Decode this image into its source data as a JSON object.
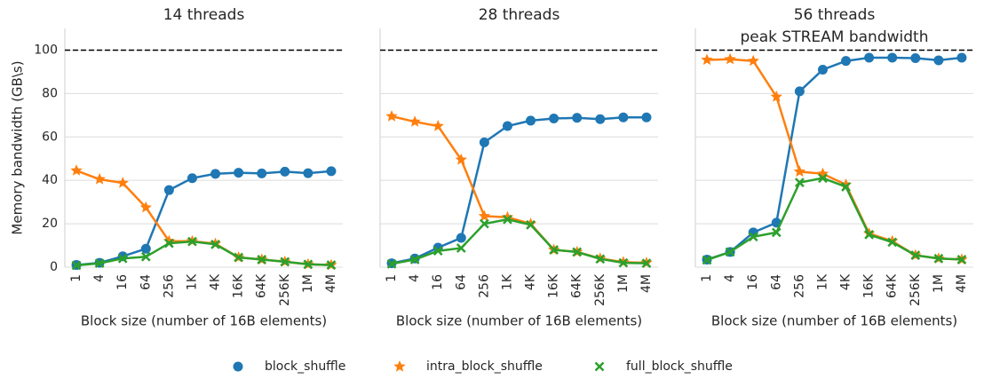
{
  "chart_data": [
    {
      "type": "line",
      "title": "14 threads",
      "ylabel": "Memory bandwidth (GB\\s)",
      "xlabel": "Block size (number of 16B elements)",
      "categories": [
        "1",
        "4",
        "16",
        "64",
        "256",
        "1K",
        "4K",
        "16K",
        "64K",
        "256K",
        "1M",
        "4M"
      ],
      "ylim": [
        0,
        110
      ],
      "yticks": [
        0,
        20,
        40,
        60,
        80,
        100
      ],
      "grid": true,
      "reference_line": 100,
      "series": [
        {
          "name": "block_shuffle",
          "color": "#1f77b4",
          "marker": "circle",
          "values": [
            1,
            2,
            5,
            8.5,
            35.5,
            41,
            43,
            43.5,
            43.2,
            44,
            43.3,
            44.2
          ]
        },
        {
          "name": "intra_block_shuffle",
          "color": "#ff7f0e",
          "marker": "star",
          "values": [
            44.5,
            40.5,
            38.8,
            27.5,
            12,
            12,
            10.8,
            4.5,
            3.5,
            2.5,
            1.3,
            1
          ]
        },
        {
          "name": "full_block_shuffle",
          "color": "#2ca02c",
          "marker": "x",
          "values": [
            0.8,
            1.8,
            4,
            4.8,
            11,
            11.8,
            10.5,
            4.5,
            3.5,
            2.5,
            1.3,
            1
          ]
        }
      ]
    },
    {
      "type": "line",
      "title": "28 threads",
      "xlabel": "Block size (number of 16B elements)",
      "categories": [
        "1",
        "4",
        "16",
        "64",
        "256",
        "1K",
        "4K",
        "16K",
        "64K",
        "256K",
        "1M",
        "4M"
      ],
      "ylim": [
        0,
        110
      ],
      "yticks": [
        0,
        20,
        40,
        60,
        80,
        100
      ],
      "grid": true,
      "reference_line": 100,
      "series": [
        {
          "name": "block_shuffle",
          "color": "#1f77b4",
          "marker": "circle",
          "values": [
            1.8,
            4,
            9,
            13.5,
            57.5,
            65,
            67.5,
            68.5,
            68.8,
            68.2,
            69,
            69
          ]
        },
        {
          "name": "intra_block_shuffle",
          "color": "#ff7f0e",
          "marker": "star",
          "values": [
            69.5,
            67,
            65,
            49.5,
            23.5,
            23,
            20,
            8,
            7,
            4,
            2.3,
            2
          ]
        },
        {
          "name": "full_block_shuffle",
          "color": "#2ca02c",
          "marker": "x",
          "values": [
            1.5,
            3.5,
            7.5,
            8.8,
            20,
            22,
            19.5,
            8,
            7,
            3.8,
            2,
            1.8
          ]
        }
      ]
    },
    {
      "type": "line",
      "title": "56 threads",
      "xlabel": "Block size (number of 16B elements)",
      "annotation": "peak STREAM bandwidth",
      "categories": [
        "1",
        "4",
        "16",
        "64",
        "256",
        "1K",
        "4K",
        "16K",
        "64K",
        "256K",
        "1M",
        "4M"
      ],
      "ylim": [
        0,
        110
      ],
      "yticks": [
        0,
        20,
        40,
        60,
        80,
        100
      ],
      "grid": true,
      "reference_line": 100,
      "series": [
        {
          "name": "block_shuffle",
          "color": "#1f77b4",
          "marker": "circle",
          "values": [
            3.5,
            7,
            16,
            20.5,
            81,
            91,
            95,
            96.5,
            96.5,
            96.3,
            95.3,
            96.5
          ]
        },
        {
          "name": "intra_block_shuffle",
          "color": "#ff7f0e",
          "marker": "star",
          "values": [
            95.5,
            95.8,
            95,
            78.5,
            44,
            43,
            38,
            15.5,
            12,
            5.5,
            4,
            3.5
          ]
        },
        {
          "name": "full_block_shuffle",
          "color": "#2ca02c",
          "marker": "x",
          "values": [
            3.3,
            7,
            14,
            16,
            39,
            41,
            37,
            15,
            11.5,
            5.5,
            4,
            3.5
          ]
        }
      ]
    }
  ]
}
